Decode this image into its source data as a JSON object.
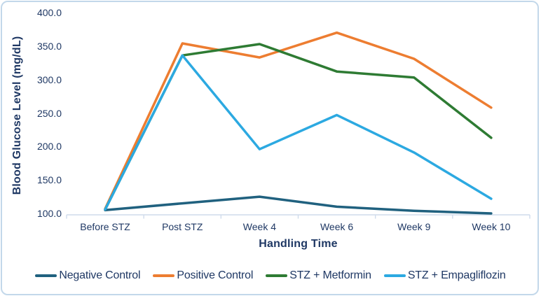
{
  "chart_data": {
    "type": "line",
    "title": "",
    "xlabel": "Handling Time",
    "ylabel": "Blood Glucose Level (mg/dL)",
    "categories": [
      "Before STZ",
      "Post STZ",
      "Week 4",
      "Week 6",
      "Week 9",
      "Week 10"
    ],
    "series": [
      {
        "name": "Negative Control",
        "color": "#20617f",
        "values": [
          105,
          115,
          125,
          110,
          104,
          100
        ]
      },
      {
        "name": "Positive Control",
        "color": "#ed7d31",
        "values": [
          107,
          354,
          333,
          370,
          331,
          258
        ]
      },
      {
        "name": "STZ + Metformin",
        "color": "#2e7b33",
        "values": [
          106,
          336,
          353,
          312,
          303,
          213
        ]
      },
      {
        "name": "STZ + Empagliflozin",
        "color": "#2ca9e1",
        "values": [
          106,
          336,
          196,
          247,
          191,
          122
        ]
      }
    ],
    "ylim": [
      100,
      400
    ],
    "yticks": [
      100,
      150,
      200,
      250,
      300,
      350,
      400
    ],
    "ytick_labels": [
      "100.0",
      "150.0",
      "200.0",
      "250.0",
      "300.0",
      "350.0",
      "400.0"
    ],
    "grid": false,
    "legend_position": "bottom"
  },
  "colors": {
    "text": "#1f3864",
    "axis_line": "#cfdcec",
    "frame_border": "#c3d8ea",
    "background": "#ffffff"
  }
}
